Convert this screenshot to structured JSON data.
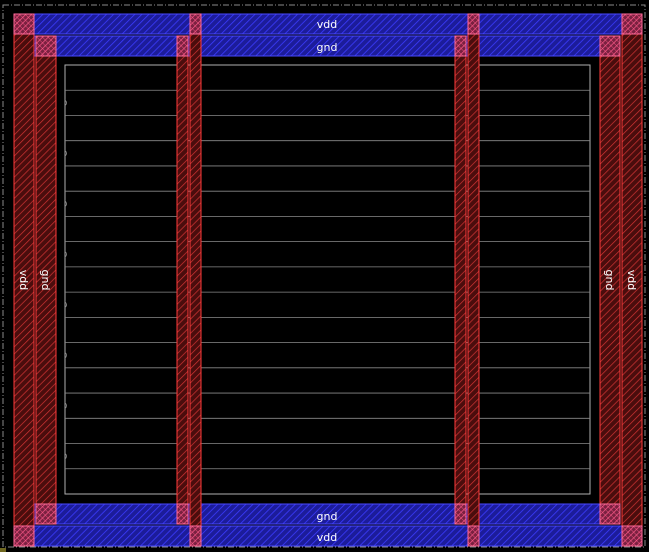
{
  "rings": {
    "top_outer": "vdd",
    "top_inner": "gnd",
    "bottom_inner": "gnd",
    "bottom_outer": "vdd",
    "left_outer": "vdd",
    "left_inner": "gnd",
    "right_inner": "gnd",
    "right_outer": "vdd"
  },
  "colors": {
    "background": "#000000",
    "metal_horizontal": "#1f1fb8",
    "metal_vertical": "#b03030",
    "hatch_blue": "#3a3aff",
    "hatch_red": "#ff3a3a",
    "core_outline": "#b0b0b0",
    "row_line": "#8a8a8a",
    "label": "#ffffff"
  },
  "core": {
    "row_count": 17
  }
}
